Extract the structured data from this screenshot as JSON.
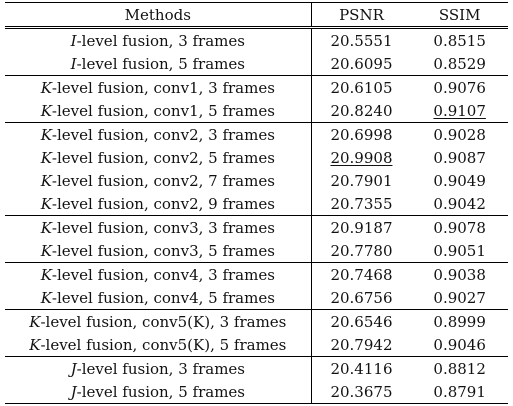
{
  "headers": {
    "method": "Methods",
    "psnr": "PSNR",
    "ssim": "SSIM"
  },
  "rows": [
    {
      "prefix": "I",
      "rest": "-level fusion, 3 frames",
      "psnr": "20.5551",
      "ssim": "0.8515"
    },
    {
      "prefix": "I",
      "rest": "-level fusion, 5 frames",
      "psnr": "20.6095",
      "ssim": "0.8529"
    },
    {
      "prefix": "K",
      "rest": "-level fusion, conv1, 3 frames",
      "psnr": "20.6105",
      "ssim": "0.9076"
    },
    {
      "prefix": "K",
      "rest": "-level fusion, conv1, 5 frames",
      "psnr": "20.8240",
      "ssim": "0.9107"
    },
    {
      "prefix": "K",
      "rest": "-level fusion, conv2, 3 frames",
      "psnr": "20.6998",
      "ssim": "0.9028"
    },
    {
      "prefix": "K",
      "rest": "-level fusion, conv2, 5 frames",
      "psnr": "20.9908",
      "ssim": "0.9087"
    },
    {
      "prefix": "K",
      "rest": "-level fusion, conv2, 7 frames",
      "psnr": "20.7901",
      "ssim": "0.9049"
    },
    {
      "prefix": "K",
      "rest": "-level fusion, conv2, 9 frames",
      "psnr": "20.7355",
      "ssim": "0.9042"
    },
    {
      "prefix": "K",
      "rest": "-level fusion, conv3, 3 frames",
      "psnr": "20.9187",
      "ssim": "0.9078"
    },
    {
      "prefix": "K",
      "rest": "-level fusion, conv3, 5 frames",
      "psnr": "20.7780",
      "ssim": "0.9051"
    },
    {
      "prefix": "K",
      "rest": "-level fusion, conv4, 3 frames",
      "psnr": "20.7468",
      "ssim": "0.9038"
    },
    {
      "prefix": "K",
      "rest": "-level fusion, conv4, 5 frames",
      "psnr": "20.6756",
      "ssim": "0.9027"
    },
    {
      "prefix": "K",
      "rest": "-level fusion, conv5(K), 3 frames",
      "psnr": "20.6546",
      "ssim": "0.8999"
    },
    {
      "prefix": "K",
      "rest": "-level fusion, conv5(K), 5 frames",
      "psnr": "20.7942",
      "ssim": "0.9046"
    },
    {
      "prefix": "J",
      "rest": "-level fusion, 3 frames",
      "psnr": "20.4116",
      "ssim": "0.8812"
    },
    {
      "prefix": "J",
      "rest": "-level fusion, 5 frames",
      "psnr": "20.3675",
      "ssim": "0.8791"
    }
  ]
}
